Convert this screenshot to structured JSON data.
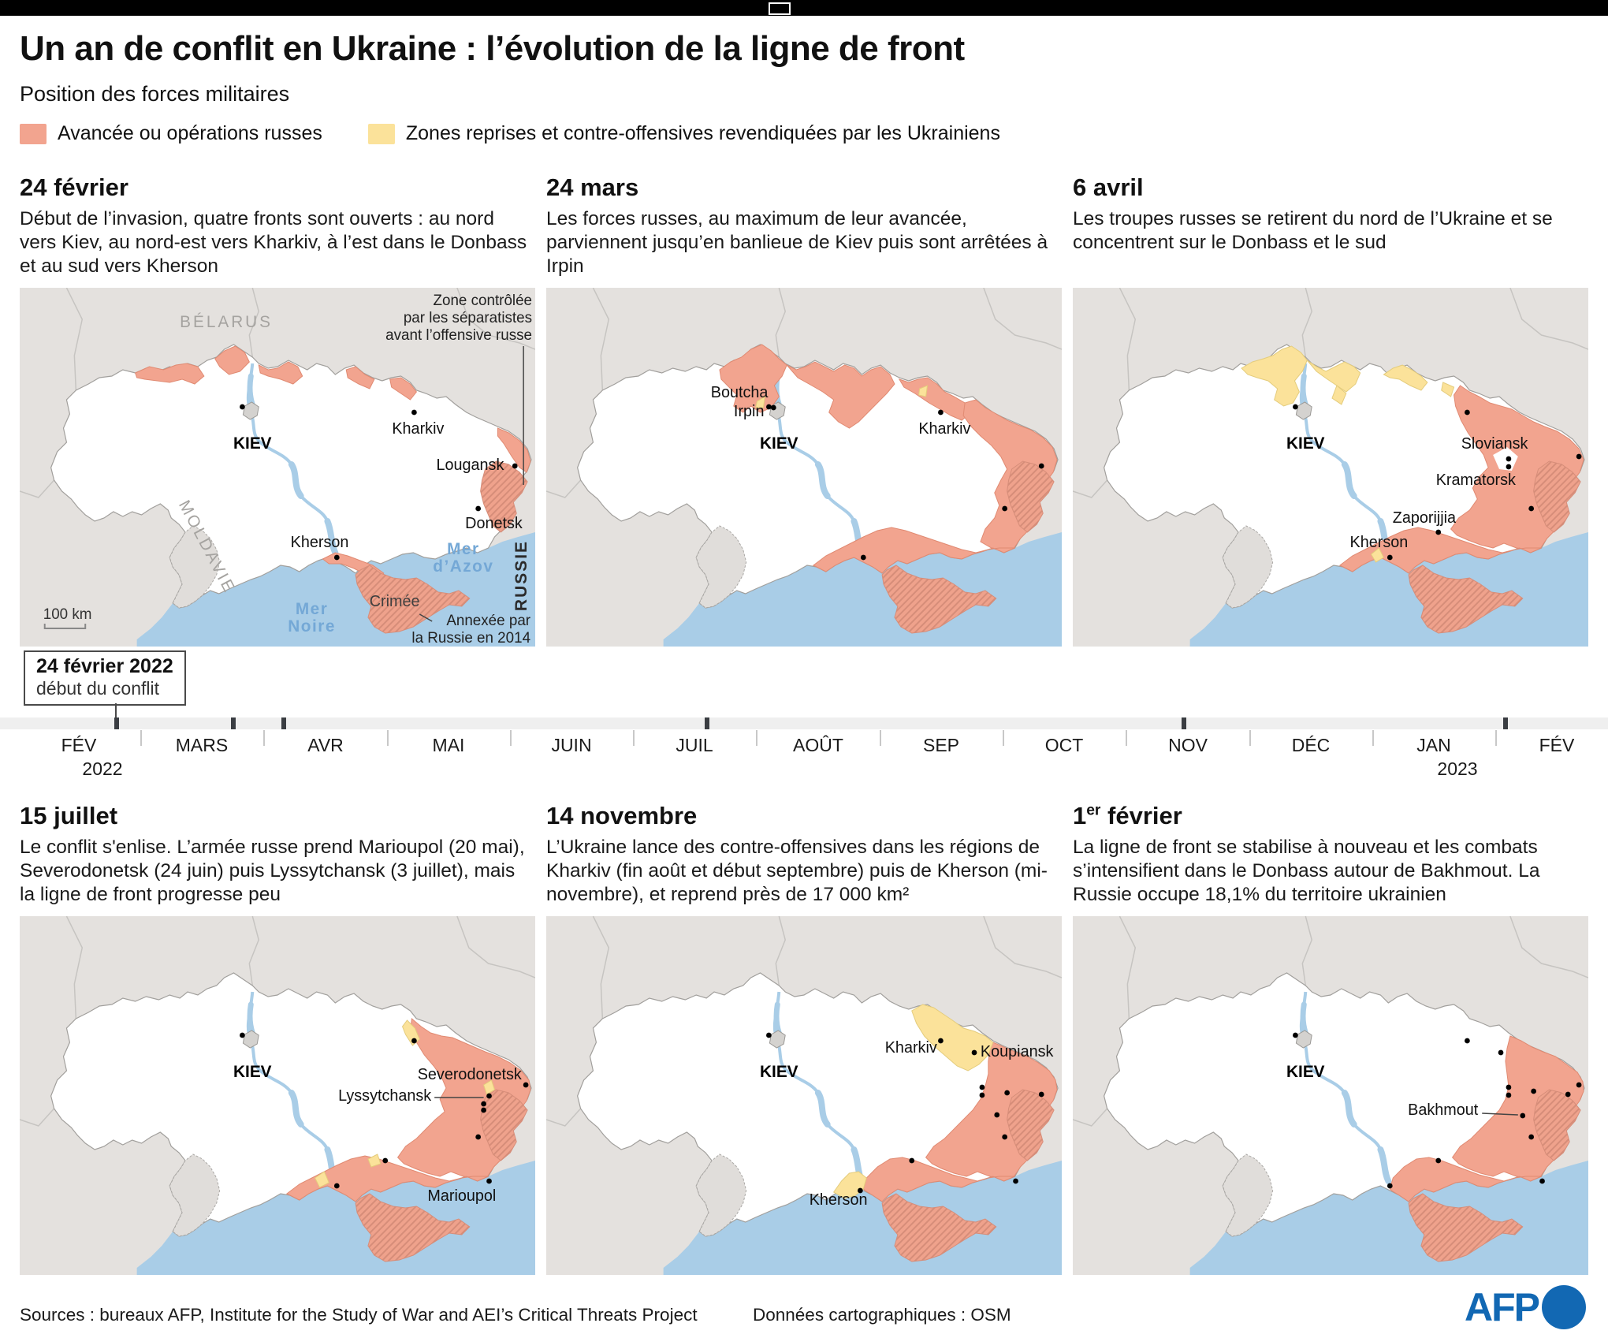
{
  "header": {
    "title": "Un an de conflit en Ukraine : l’évolution de la ligne de front",
    "subtitle": "Position des forces militaires"
  },
  "legend": {
    "items": [
      {
        "label": "Avancée ou opérations russes",
        "color": "#f2a48f"
      },
      {
        "label": "Zones reprises et contre-offensives revendiquées par les Ukrainiens",
        "color": "#fbe29a"
      }
    ]
  },
  "panels": [
    {
      "date_num": "24",
      "date_sup": "",
      "date_word": " février",
      "text": "Début de l’invasion, quatre fronts sont ouverts : au nord vers Kiev, au nord-est vers Kharkiv, à l’est dans le Donbass et au sud vers Kherson"
    },
    {
      "date_num": "24",
      "date_sup": "",
      "date_word": " mars",
      "text": "Les forces russes, au maximum de leur avancée, parviennent jusqu’en banlieue de Kiev puis sont arrêtées à Irpin"
    },
    {
      "date_num": "6",
      "date_sup": "",
      "date_word": " avril",
      "text": "Les troupes russes se retirent du nord de l’Ukraine et se concentrent sur le Donbass et le sud"
    },
    {
      "date_num": "15",
      "date_sup": "",
      "date_word": " juillet",
      "text": "Le conflit s'enlise. L’armée russe prend Marioupol (20 mai), Severodonetsk (24 juin) puis Lyssytchansk (3 juillet), mais la ligne de front progresse peu"
    },
    {
      "date_num": "14",
      "date_sup": "",
      "date_word": " novembre",
      "text": "L’Ukraine lance des contre-offensives dans les régions de Kharkiv (fin août et début septembre) puis de Kherson (mi-novembre), et reprend près de 17 000 km²"
    },
    {
      "date_num": "1",
      "date_sup": "er",
      "date_word": " février",
      "text": "La ligne de front se stabilise à nouveau et les combats s’intensifient dans le Donbass autour de Bakhmout. La Russie occupe 18,1% du territoire ukrainien"
    }
  ],
  "map_labels": {
    "kiev": "KIEV",
    "kharkiv": "Kharkiv",
    "lougansk": "Lougansk",
    "donetsk": "Donetsk",
    "kherson": "Kherson",
    "boutcha": "Boutcha",
    "irpin": "Irpin",
    "sloviansk": "Sloviansk",
    "kramatorsk": "Kramatorsk",
    "zaporijjia": "Zaporijjia",
    "severodonetsk": "Severodonetsk",
    "lyssytchansk": "Lyssytchansk",
    "marioupol": "Marioupol",
    "koupiansk": "Koupiansk",
    "bakhmout": "Bakhmout",
    "belarus": "BÉLARUS",
    "moldavie": "MOLDAVIE",
    "russie": "RUSSIE",
    "crimee": "Crimée",
    "mer_azov": [
      "Mer",
      "d’Azov"
    ],
    "mer_noire": [
      "Mer",
      "Noire"
    ],
    "annot_separatists": [
      "Zone contrôlée",
      "par les séparatistes",
      "avant l’offensive russe"
    ],
    "annot_crimea": [
      "Annexée par",
      "la Russie en 2014"
    ],
    "scale": "100 km"
  },
  "timeline": {
    "callout_title": "24 février 2022",
    "callout_sub": "début du conflit",
    "months": [
      "FÉV",
      "MARS",
      "AVR",
      "MAI",
      "JUIN",
      "JUIL",
      "AOÛT",
      "SEP",
      "OCT",
      "NOV",
      "DÉC",
      "JAN",
      "FÉV"
    ],
    "year_start": "2022",
    "year_end": "2023"
  },
  "footer": {
    "sources": "Sources : bureaux AFP, Institute for the Study of War and AEI’s Critical Threats Project",
    "map_data": "Données cartographiques : OSM",
    "logo_text": "AFP"
  },
  "colors": {
    "russian": "#f2a48f",
    "ukrainian": "#fbe29a",
    "sea": "#a9cde7",
    "land": "#e4e1de",
    "afp_blue": "#1268b3"
  }
}
